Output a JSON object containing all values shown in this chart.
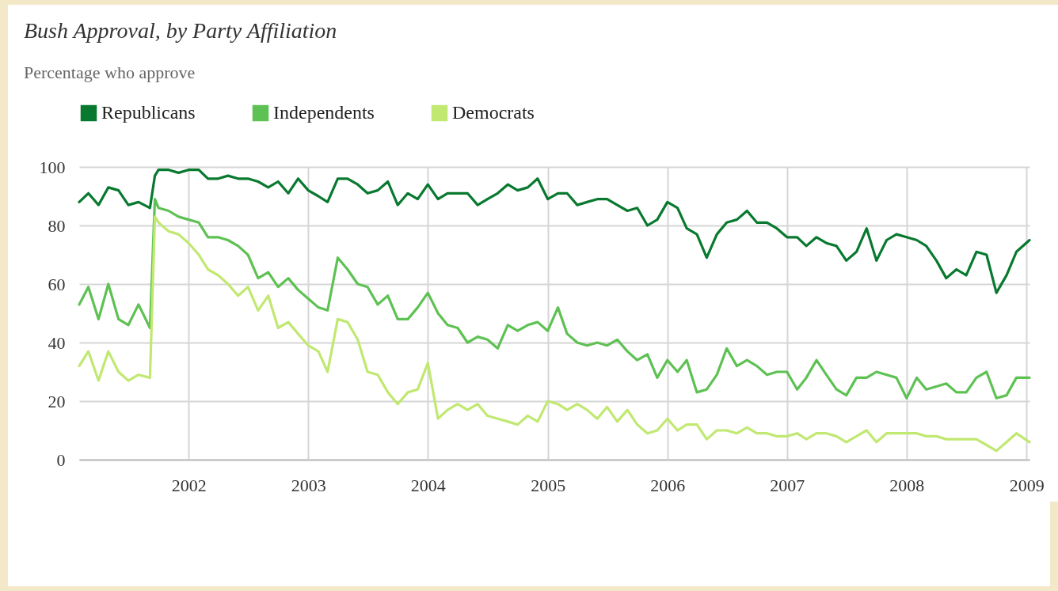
{
  "chart_data": {
    "type": "line",
    "title": "Bush Approval, by Party Affiliation",
    "subtitle": "Percentage who approve",
    "x": [
      "2001-02-01",
      "2001-03-01",
      "2001-04-01",
      "2001-05-01",
      "2001-06-01",
      "2001-07-01",
      "2001-08-01",
      "2001-09-05",
      "2001-09-20",
      "2001-10-01",
      "2001-11-01",
      "2001-12-01",
      "2002-01-01",
      "2002-02-01",
      "2002-03-01",
      "2002-04-01",
      "2002-05-01",
      "2002-06-01",
      "2002-07-01",
      "2002-08-01",
      "2002-09-01",
      "2002-10-01",
      "2002-11-01",
      "2002-12-01",
      "2003-01-01",
      "2003-02-01",
      "2003-03-01",
      "2003-04-01",
      "2003-05-01",
      "2003-06-01",
      "2003-07-01",
      "2003-08-01",
      "2003-09-01",
      "2003-10-01",
      "2003-11-01",
      "2003-12-01",
      "2004-01-01",
      "2004-02-01",
      "2004-03-01",
      "2004-04-01",
      "2004-05-01",
      "2004-06-01",
      "2004-07-01",
      "2004-08-01",
      "2004-09-01",
      "2004-10-01",
      "2004-11-01",
      "2004-12-01",
      "2005-01-01",
      "2005-02-01",
      "2005-03-01",
      "2005-04-01",
      "2005-05-01",
      "2005-06-01",
      "2005-07-01",
      "2005-08-01",
      "2005-09-01",
      "2005-10-01",
      "2005-11-01",
      "2005-12-01",
      "2006-01-01",
      "2006-02-01",
      "2006-03-01",
      "2006-04-01",
      "2006-05-01",
      "2006-06-01",
      "2006-07-01",
      "2006-08-01",
      "2006-09-01",
      "2006-10-01",
      "2006-11-01",
      "2006-12-01",
      "2007-01-01",
      "2007-02-01",
      "2007-03-01",
      "2007-04-01",
      "2007-05-01",
      "2007-06-01",
      "2007-07-01",
      "2007-08-01",
      "2007-09-01",
      "2007-10-01",
      "2007-11-01",
      "2007-12-01",
      "2008-01-01",
      "2008-02-01",
      "2008-03-01",
      "2008-04-01",
      "2008-05-01",
      "2008-06-01",
      "2008-07-01",
      "2008-08-01",
      "2008-09-01",
      "2008-10-01",
      "2008-11-01",
      "2008-12-01",
      "2009-01-10"
    ],
    "series": [
      {
        "name": "Republicans",
        "color": "#08792f",
        "values": [
          88,
          91,
          87,
          93,
          92,
          87,
          88,
          86,
          97,
          99,
          99,
          98,
          99,
          99,
          96,
          96,
          97,
          96,
          96,
          95,
          93,
          95,
          91,
          96,
          92,
          90,
          88,
          96,
          96,
          94,
          91,
          92,
          95,
          87,
          91,
          89,
          94,
          89,
          91,
          91,
          91,
          87,
          89,
          91,
          94,
          92,
          93,
          96,
          89,
          91,
          91,
          87,
          88,
          89,
          89,
          87,
          85,
          86,
          80,
          82,
          88,
          86,
          79,
          77,
          69,
          77,
          81,
          82,
          85,
          81,
          81,
          79,
          76,
          76,
          73,
          76,
          74,
          73,
          68,
          71,
          79,
          68,
          75,
          77,
          76,
          75,
          73,
          68,
          62,
          65,
          63,
          71,
          70,
          57,
          63,
          71,
          75
        ]
      },
      {
        "name": "Independents",
        "color": "#5ec153",
        "values": [
          53,
          59,
          48,
          60,
          48,
          46,
          53,
          45,
          89,
          86,
          85,
          83,
          82,
          81,
          76,
          76,
          75,
          73,
          70,
          62,
          64,
          59,
          62,
          58,
          55,
          52,
          51,
          69,
          65,
          60,
          59,
          53,
          56,
          48,
          48,
          52,
          57,
          50,
          46,
          45,
          40,
          42,
          41,
          38,
          46,
          44,
          46,
          47,
          44,
          52,
          43,
          40,
          39,
          40,
          39,
          41,
          37,
          34,
          36,
          28,
          34,
          30,
          34,
          23,
          24,
          29,
          38,
          32,
          34,
          32,
          29,
          30,
          30,
          24,
          28,
          34,
          29,
          24,
          22,
          28,
          28,
          30,
          29,
          28,
          21,
          28,
          24,
          25,
          26,
          23,
          23,
          28,
          30,
          21,
          22,
          28,
          28
        ]
      },
      {
        "name": "Democrats",
        "color": "#c1e871",
        "values": [
          32,
          37,
          27,
          37,
          30,
          27,
          29,
          28,
          83,
          81,
          78,
          77,
          74,
          70,
          65,
          63,
          60,
          56,
          59,
          51,
          56,
          45,
          47,
          43,
          39,
          37,
          30,
          48,
          47,
          41,
          30,
          29,
          23,
          19,
          23,
          24,
          33,
          14,
          17,
          19,
          17,
          19,
          15,
          14,
          13,
          12,
          15,
          13,
          20,
          19,
          17,
          19,
          17,
          14,
          18,
          13,
          17,
          12,
          9,
          10,
          14,
          10,
          12,
          12,
          7,
          10,
          10,
          9,
          11,
          9,
          9,
          8,
          8,
          9,
          7,
          9,
          9,
          8,
          6,
          8,
          10,
          6,
          9,
          9,
          9,
          9,
          8,
          8,
          7,
          7,
          7,
          7,
          5,
          3,
          6,
          9,
          6
        ]
      }
    ],
    "xlim": [
      "2001-02-01",
      "2009-01-10"
    ],
    "xticks": [
      "2002",
      "2003",
      "2004",
      "2005",
      "2006",
      "2007",
      "2008",
      "2009"
    ],
    "ylim": [
      0,
      100
    ],
    "yticks": [
      0,
      20,
      40,
      60,
      80,
      100
    ],
    "grid": true,
    "legend": "top left"
  }
}
